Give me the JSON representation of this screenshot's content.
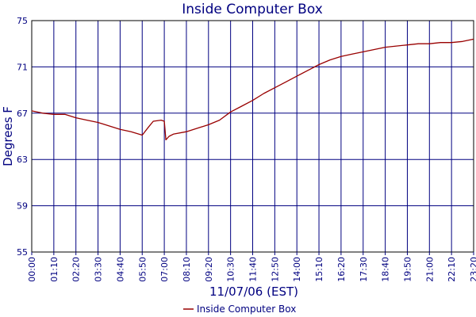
{
  "chart_data": {
    "type": "line",
    "title": "Inside Computer Box",
    "xlabel": "11/07/06 (EST)",
    "ylabel": "Degrees F",
    "ylim": [
      55,
      75
    ],
    "yticks": [
      55,
      59,
      63,
      67,
      71,
      75
    ],
    "x_ticks": [
      "00:00",
      "01:10",
      "02:20",
      "03:30",
      "04:40",
      "05:50",
      "07:00",
      "08:10",
      "09:20",
      "10:30",
      "11:40",
      "12:50",
      "14:00",
      "15:10",
      "16:20",
      "17:30",
      "18:40",
      "19:50",
      "21:00",
      "22:10",
      "23:20"
    ],
    "grid": true,
    "legend": "bottom-center",
    "series": [
      {
        "name": "Inside Computer Box",
        "color": "#990000",
        "x": [
          "00:00",
          "00:35",
          "01:10",
          "01:45",
          "02:20",
          "02:55",
          "03:30",
          "04:05",
          "04:40",
          "05:15",
          "05:50",
          "06:10",
          "06:25",
          "06:50",
          "07:00",
          "07:05",
          "07:15",
          "07:30",
          "08:10",
          "08:45",
          "09:20",
          "09:55",
          "10:30",
          "11:05",
          "11:40",
          "12:15",
          "12:50",
          "13:25",
          "14:00",
          "14:35",
          "15:10",
          "15:45",
          "16:20",
          "16:55",
          "17:30",
          "18:05",
          "18:40",
          "19:15",
          "19:50",
          "20:25",
          "21:00",
          "21:35",
          "22:10",
          "22:45",
          "23:20"
        ],
        "values": [
          67.2,
          67.0,
          66.9,
          66.9,
          66.6,
          66.4,
          66.2,
          65.9,
          65.6,
          65.4,
          65.1,
          65.8,
          66.3,
          66.4,
          66.3,
          64.7,
          65.0,
          65.2,
          65.4,
          65.7,
          66.0,
          66.4,
          67.1,
          67.6,
          68.1,
          68.7,
          69.2,
          69.7,
          70.2,
          70.7,
          71.2,
          71.6,
          71.9,
          72.1,
          72.3,
          72.5,
          72.7,
          72.8,
          72.9,
          73.0,
          73.0,
          73.1,
          73.1,
          73.2,
          73.4
        ]
      }
    ]
  }
}
